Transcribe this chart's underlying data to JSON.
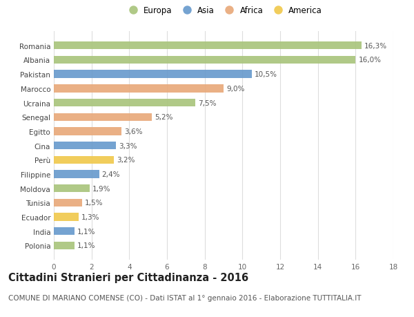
{
  "countries": [
    "Romania",
    "Albania",
    "Pakistan",
    "Marocco",
    "Ucraina",
    "Senegal",
    "Egitto",
    "Cina",
    "Perù",
    "Filippine",
    "Moldova",
    "Tunisia",
    "Ecuador",
    "India",
    "Polonia"
  ],
  "values": [
    16.3,
    16.0,
    10.5,
    9.0,
    7.5,
    5.2,
    3.6,
    3.3,
    3.2,
    2.4,
    1.9,
    1.5,
    1.3,
    1.1,
    1.1
  ],
  "labels": [
    "16,3%",
    "16,0%",
    "10,5%",
    "9,0%",
    "7,5%",
    "5,2%",
    "3,6%",
    "3,3%",
    "3,2%",
    "2,4%",
    "1,9%",
    "1,5%",
    "1,3%",
    "1,1%",
    "1,1%"
  ],
  "continents": [
    "Europa",
    "Europa",
    "Asia",
    "Africa",
    "Europa",
    "Africa",
    "Africa",
    "Asia",
    "America",
    "Asia",
    "Europa",
    "Africa",
    "America",
    "Asia",
    "Europa"
  ],
  "continent_colors": {
    "Europa": "#a8c47a",
    "Asia": "#6699cc",
    "Africa": "#e8a878",
    "America": "#f0c84a"
  },
  "legend_order": [
    "Europa",
    "Asia",
    "Africa",
    "America"
  ],
  "title": "Cittadini Stranieri per Cittadinanza - 2016",
  "subtitle": "COMUNE DI MARIANO COMENSE (CO) - Dati ISTAT al 1° gennaio 2016 - Elaborazione TUTTITALIA.IT",
  "xlim": [
    0,
    18
  ],
  "xticks": [
    0,
    2,
    4,
    6,
    8,
    10,
    12,
    14,
    16,
    18
  ],
  "bg_color": "#ffffff",
  "grid_color": "#dddddd",
  "bar_height": 0.55,
  "title_fontsize": 10.5,
  "subtitle_fontsize": 7.5,
  "label_fontsize": 7.5,
  "tick_fontsize": 7.5,
  "legend_fontsize": 8.5
}
